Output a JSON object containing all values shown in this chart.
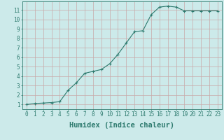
{
  "x": [
    0,
    1,
    2,
    3,
    4,
    5,
    6,
    7,
    8,
    9,
    10,
    11,
    12,
    13,
    14,
    15,
    16,
    17,
    18,
    19,
    20,
    21,
    22,
    23
  ],
  "y": [
    1.0,
    1.1,
    1.15,
    1.2,
    1.3,
    2.5,
    3.3,
    4.3,
    4.5,
    4.7,
    5.3,
    6.3,
    7.5,
    8.7,
    8.8,
    10.5,
    11.3,
    11.4,
    11.3,
    10.9,
    10.9,
    10.9,
    10.9,
    10.9
  ],
  "line_color": "#2d7a6e",
  "marker": "+",
  "marker_size": 3,
  "bg_color": "#cceaea",
  "grid_color": "#aac8c8",
  "xlabel": "Humidex (Indice chaleur)",
  "ylabel": "",
  "xlim": [
    -0.5,
    23.5
  ],
  "ylim": [
    0.5,
    11.9
  ],
  "yticks": [
    1,
    2,
    3,
    4,
    5,
    6,
    7,
    8,
    9,
    10,
    11
  ],
  "xticks": [
    0,
    1,
    2,
    3,
    4,
    5,
    6,
    7,
    8,
    9,
    10,
    11,
    12,
    13,
    14,
    15,
    16,
    17,
    18,
    19,
    20,
    21,
    22,
    23
  ],
  "axis_color": "#2d7a6e",
  "tick_color": "#2d7a6e",
  "label_fontsize": 7.5,
  "tick_fontsize": 5.5
}
